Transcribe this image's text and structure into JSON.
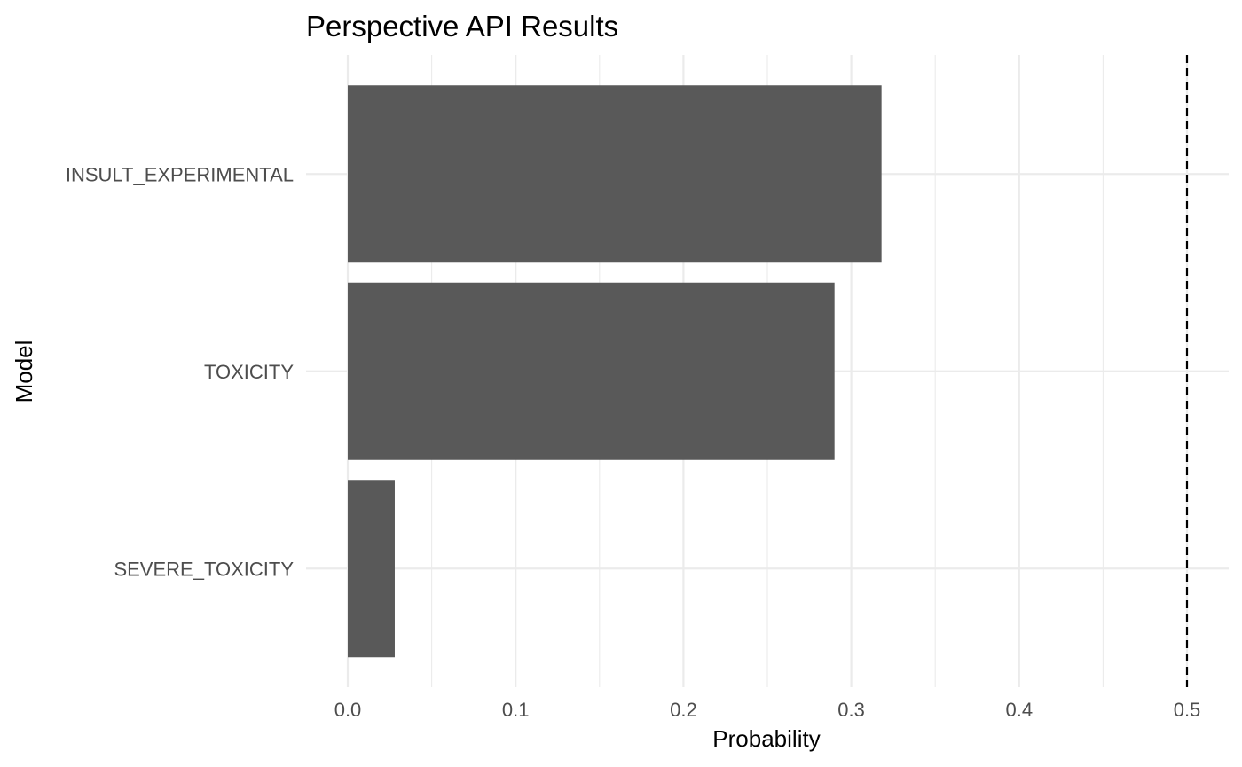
{
  "chart_data": {
    "type": "bar",
    "orientation": "horizontal",
    "title": "Perspective API Results",
    "xlabel": "Probability",
    "ylabel": "Model",
    "categories": [
      "INSULT_EXPERIMENTAL",
      "TOXICITY",
      "SEVERE_TOXICITY"
    ],
    "values": [
      0.318,
      0.29,
      0.028
    ],
    "xlim": [
      0,
      0.5
    ],
    "x_ticks": [
      "0.0",
      "0.1",
      "0.2",
      "0.3",
      "0.4",
      "0.5"
    ],
    "reference_line": {
      "x": 0.5,
      "style": "dashed",
      "color": "#000000"
    },
    "bar_color": "#595959",
    "grid": true,
    "legend": "none"
  }
}
